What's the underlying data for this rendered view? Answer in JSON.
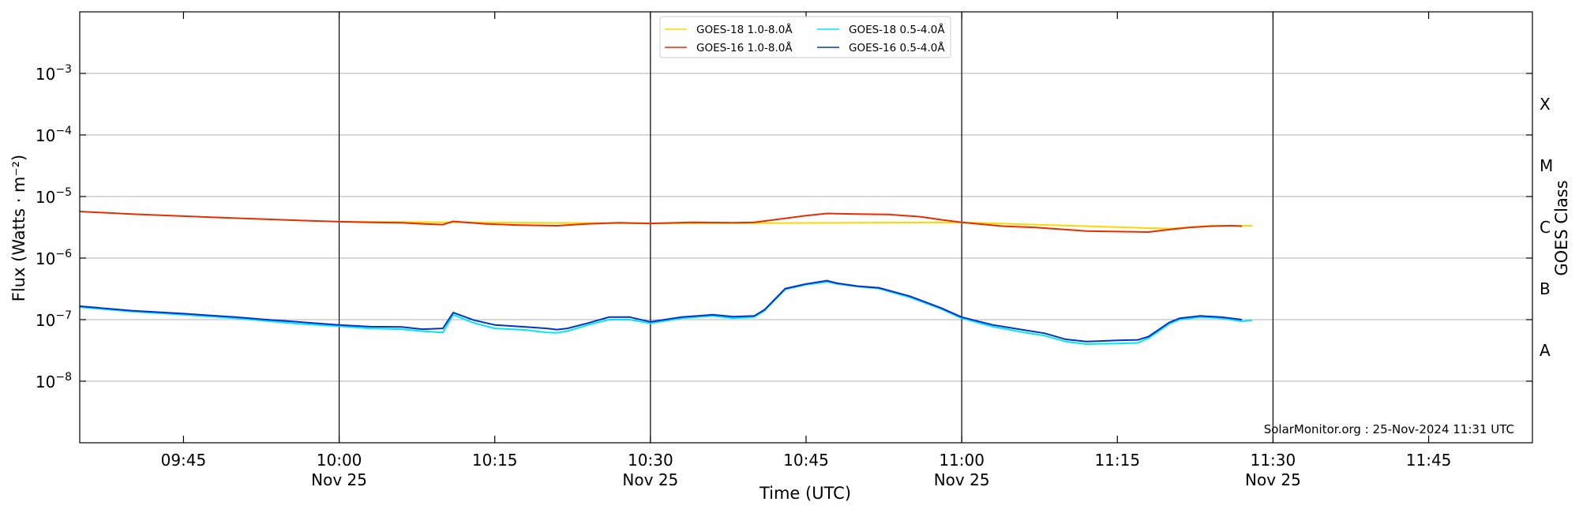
{
  "chart_data": {
    "type": "line",
    "xlabel": "Time (UTC)",
    "ylabel": "Flux (Watts · m⁻²)",
    "y2label": "GOES Class",
    "yscale": "log",
    "ylim": [
      1e-09,
      0.01
    ],
    "xlim": [
      "09:35",
      "11:55"
    ],
    "x_ticks": [
      {
        "time": "09:45",
        "label": "09:45",
        "sublabel": ""
      },
      {
        "time": "10:00",
        "label": "10:00",
        "sublabel": "Nov 25"
      },
      {
        "time": "10:15",
        "label": "10:15",
        "sublabel": ""
      },
      {
        "time": "10:30",
        "label": "10:30",
        "sublabel": "Nov 25"
      },
      {
        "time": "10:45",
        "label": "10:45",
        "sublabel": ""
      },
      {
        "time": "11:00",
        "label": "11:00",
        "sublabel": "Nov 25"
      },
      {
        "time": "11:15",
        "label": "11:15",
        "sublabel": ""
      },
      {
        "time": "11:30",
        "label": "11:30",
        "sublabel": "Nov 25"
      },
      {
        "time": "11:45",
        "label": "11:45",
        "sublabel": ""
      }
    ],
    "vertical_lines": [
      "10:00",
      "10:30",
      "11:00",
      "11:30"
    ],
    "y_ticks": [
      {
        "value": 1e-08,
        "base": "10",
        "exp": "−8"
      },
      {
        "value": 1e-07,
        "base": "10",
        "exp": "−7"
      },
      {
        "value": 1e-06,
        "base": "10",
        "exp": "−6"
      },
      {
        "value": 1e-05,
        "base": "10",
        "exp": "−5"
      },
      {
        "value": 0.0001,
        "base": "10",
        "exp": "−4"
      },
      {
        "value": 0.001,
        "base": "10",
        "exp": "−3"
      }
    ],
    "goes_classes": [
      {
        "label": "A",
        "value": 3.16e-08
      },
      {
        "label": "B",
        "value": 3.16e-07
      },
      {
        "label": "C",
        "value": 3.16e-06
      },
      {
        "label": "M",
        "value": 3.16e-05
      },
      {
        "label": "X",
        "value": 0.000316
      }
    ],
    "legend": {
      "placement": "top-center",
      "columns": 2
    },
    "grid": true,
    "series": [
      {
        "name": "GOES-18 1.0-8.0Å",
        "color": "#ffd700",
        "points": [
          [
            "10:00",
            3.9e-06
          ],
          [
            "10:30",
            3.65e-06
          ],
          [
            "11:00",
            3.8e-06
          ],
          [
            "11:20",
            3e-06
          ],
          [
            "11:24",
            3.35e-06
          ],
          [
            "11:26",
            3.35e-06
          ],
          [
            "11:27",
            3.35e-06
          ],
          [
            "11:28",
            3.35e-06
          ]
        ]
      },
      {
        "name": "GOES-18 0.5-4.0Å",
        "color": "#00e5ff",
        "points": [
          [
            "09:35",
            1.6e-07
          ],
          [
            "09:40",
            1.35e-07
          ],
          [
            "09:45",
            1.2e-07
          ],
          [
            "09:50",
            1.05e-07
          ],
          [
            "09:53",
            9.5e-08
          ],
          [
            "09:56",
            8.6e-08
          ],
          [
            "10:00",
            7.8e-08
          ],
          [
            "10:03",
            7.2e-08
          ],
          [
            "10:06",
            7e-08
          ],
          [
            "10:08",
            6.5e-08
          ],
          [
            "10:10",
            6.2e-08
          ],
          [
            "10:11",
            1.2e-07
          ],
          [
            "10:13",
            8.8e-08
          ],
          [
            "10:15",
            7.2e-08
          ],
          [
            "10:18",
            6.8e-08
          ],
          [
            "10:20",
            6.2e-08
          ],
          [
            "10:21",
            6.1e-08
          ],
          [
            "10:22",
            6.5e-08
          ],
          [
            "10:24",
            8.2e-08
          ],
          [
            "10:26",
            1e-07
          ],
          [
            "10:28",
            1e-07
          ],
          [
            "10:30",
            8.7e-08
          ],
          [
            "10:33",
            1.05e-07
          ],
          [
            "10:36",
            1.15e-07
          ],
          [
            "10:38",
            1.05e-07
          ],
          [
            "10:40",
            1.1e-07
          ],
          [
            "10:41",
            1.4e-07
          ],
          [
            "10:43",
            3.1e-07
          ],
          [
            "10:45",
            3.7e-07
          ],
          [
            "10:47",
            4.1e-07
          ],
          [
            "10:48",
            3.8e-07
          ],
          [
            "10:50",
            3.45e-07
          ],
          [
            "10:52",
            3.2e-07
          ],
          [
            "10:55",
            2.3e-07
          ],
          [
            "10:58",
            1.5e-07
          ],
          [
            "11:00",
            1.05e-07
          ],
          [
            "11:03",
            7.7e-08
          ],
          [
            "11:06",
            6.2e-08
          ],
          [
            "11:08",
            5.5e-08
          ],
          [
            "11:10",
            4.4e-08
          ],
          [
            "11:12",
            4e-08
          ],
          [
            "11:15",
            4.1e-08
          ],
          [
            "11:17",
            4.2e-08
          ],
          [
            "11:18",
            5e-08
          ],
          [
            "11:20",
            8.5e-08
          ],
          [
            "11:21",
            1e-07
          ],
          [
            "11:23",
            1.1e-07
          ],
          [
            "11:25",
            1.05e-07
          ],
          [
            "11:27",
            9.4e-08
          ],
          [
            "11:28",
            9.8e-08
          ]
        ]
      },
      {
        "name": "GOES-16 1.0-8.0Å",
        "color": "#e62e00",
        "points": [
          [
            "09:35",
            5.7e-06
          ],
          [
            "09:40",
            5.2e-06
          ],
          [
            "09:45",
            4.8e-06
          ],
          [
            "09:50",
            4.45e-06
          ],
          [
            "09:55",
            4.15e-06
          ],
          [
            "10:00",
            3.9e-06
          ],
          [
            "10:03",
            3.8e-06
          ],
          [
            "10:06",
            3.75e-06
          ],
          [
            "10:08",
            3.6e-06
          ],
          [
            "10:10",
            3.5e-06
          ],
          [
            "10:11",
            3.95e-06
          ],
          [
            "10:14",
            3.6e-06
          ],
          [
            "10:17",
            3.45e-06
          ],
          [
            "10:21",
            3.35e-06
          ],
          [
            "10:24",
            3.6e-06
          ],
          [
            "10:27",
            3.75e-06
          ],
          [
            "10:30",
            3.65e-06
          ],
          [
            "10:34",
            3.8e-06
          ],
          [
            "10:38",
            3.75e-06
          ],
          [
            "10:40",
            3.8e-06
          ],
          [
            "10:42",
            4.2e-06
          ],
          [
            "10:45",
            4.9e-06
          ],
          [
            "10:47",
            5.3e-06
          ],
          [
            "10:50",
            5.2e-06
          ],
          [
            "10:53",
            5.1e-06
          ],
          [
            "10:56",
            4.7e-06
          ],
          [
            "10:58",
            4.2e-06
          ],
          [
            "11:00",
            3.8e-06
          ],
          [
            "11:04",
            3.3e-06
          ],
          [
            "11:07",
            3.15e-06
          ],
          [
            "11:10",
            2.9e-06
          ],
          [
            "11:12",
            2.75e-06
          ],
          [
            "11:15",
            2.7e-06
          ],
          [
            "11:18",
            2.65e-06
          ],
          [
            "11:20",
            2.9e-06
          ],
          [
            "11:22",
            3.15e-06
          ],
          [
            "11:24",
            3.3e-06
          ],
          [
            "11:26",
            3.35e-06
          ],
          [
            "11:27",
            3.3e-06
          ]
        ]
      },
      {
        "name": "GOES-16 0.5-4.0Å",
        "color": "#0033cc",
        "points": [
          [
            "09:35",
            1.65e-07
          ],
          [
            "09:40",
            1.4e-07
          ],
          [
            "09:45",
            1.25e-07
          ],
          [
            "09:50",
            1.1e-07
          ],
          [
            "09:53",
            1e-07
          ],
          [
            "09:56",
            9.2e-08
          ],
          [
            "10:00",
            8.2e-08
          ],
          [
            "10:03",
            7.7e-08
          ],
          [
            "10:06",
            7.6e-08
          ],
          [
            "10:08",
            7e-08
          ],
          [
            "10:10",
            7.2e-08
          ],
          [
            "10:11",
            1.3e-07
          ],
          [
            "10:13",
            9.8e-08
          ],
          [
            "10:15",
            8.2e-08
          ],
          [
            "10:18",
            7.6e-08
          ],
          [
            "10:20",
            7.2e-08
          ],
          [
            "10:21",
            6.9e-08
          ],
          [
            "10:22",
            7.2e-08
          ],
          [
            "10:24",
            8.8e-08
          ],
          [
            "10:26",
            1.1e-07
          ],
          [
            "10:28",
            1.1e-07
          ],
          [
            "10:30",
            9.2e-08
          ],
          [
            "10:33",
            1.1e-07
          ],
          [
            "10:36",
            1.2e-07
          ],
          [
            "10:38",
            1.12e-07
          ],
          [
            "10:40",
            1.15e-07
          ],
          [
            "10:41",
            1.45e-07
          ],
          [
            "10:43",
            3.2e-07
          ],
          [
            "10:45",
            3.8e-07
          ],
          [
            "10:47",
            4.3e-07
          ],
          [
            "10:48",
            3.9e-07
          ],
          [
            "10:50",
            3.5e-07
          ],
          [
            "10:52",
            3.3e-07
          ],
          [
            "10:55",
            2.4e-07
          ],
          [
            "10:58",
            1.55e-07
          ],
          [
            "11:00",
            1.1e-07
          ],
          [
            "11:03",
            8.2e-08
          ],
          [
            "11:06",
            6.8e-08
          ],
          [
            "11:08",
            6e-08
          ],
          [
            "11:10",
            4.8e-08
          ],
          [
            "11:12",
            4.4e-08
          ],
          [
            "11:15",
            4.6e-08
          ],
          [
            "11:17",
            4.7e-08
          ],
          [
            "11:18",
            5.3e-08
          ],
          [
            "11:20",
            9e-08
          ],
          [
            "11:21",
            1.05e-07
          ],
          [
            "11:23",
            1.15e-07
          ],
          [
            "11:25",
            1.1e-07
          ],
          [
            "11:27",
            1e-07
          ]
        ]
      }
    ],
    "credit": "SolarMonitor.org : 25-Nov-2024 11:31 UTC"
  }
}
